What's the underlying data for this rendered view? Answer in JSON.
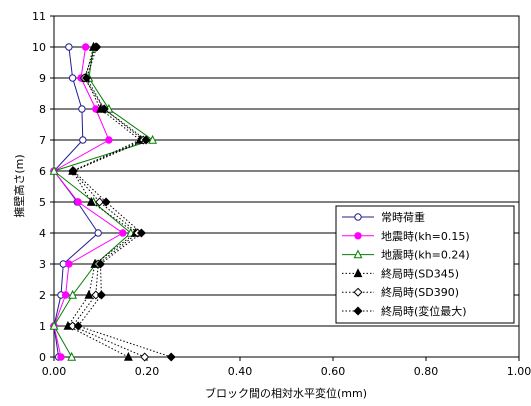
{
  "chart_data": {
    "type": "line",
    "title": "",
    "xlabel": "ブロック間の相対水平変位(mm)",
    "ylabel": "擁壁高さ(m)",
    "xlim": [
      0,
      1.0
    ],
    "ylim": [
      0,
      11
    ],
    "x_ticks": [
      "0.00",
      "0.20",
      "0.40",
      "0.60",
      "0.80",
      "1.00"
    ],
    "y_ticks": [
      "0",
      "1",
      "2",
      "3",
      "4",
      "5",
      "6",
      "7",
      "8",
      "9",
      "10",
      "11"
    ],
    "grid": "horizontal",
    "legend_position": "lower-right",
    "series": [
      {
        "name": "常時荷重",
        "color": "#1f1f8f",
        "line": "solid",
        "marker": "circle-open",
        "points": [
          [
            0.01,
            0
          ],
          [
            0.0,
            1
          ],
          [
            0.015,
            2
          ],
          [
            0.02,
            3
          ],
          [
            0.095,
            4
          ],
          [
            0.05,
            5
          ],
          [
            0.0,
            6
          ],
          [
            0.062,
            7
          ],
          [
            0.06,
            8
          ],
          [
            0.04,
            9
          ],
          [
            0.032,
            10
          ]
        ]
      },
      {
        "name": "地震時(kh=0.15)",
        "color": "#ff00ff",
        "line": "solid",
        "marker": "circle-filled",
        "points": [
          [
            0.015,
            0
          ],
          [
            0.0,
            1
          ],
          [
            0.025,
            2
          ],
          [
            0.032,
            3
          ],
          [
            0.148,
            4
          ],
          [
            0.052,
            5
          ],
          [
            0.0,
            6
          ],
          [
            0.118,
            7
          ],
          [
            0.09,
            8
          ],
          [
            0.058,
            9
          ],
          [
            0.068,
            10
          ]
        ]
      },
      {
        "name": "地震時(kh=0.24)",
        "color": "#008000",
        "line": "solid",
        "marker": "triangle-open",
        "points": [
          [
            0.038,
            0
          ],
          [
            0.0,
            1
          ],
          [
            0.04,
            2
          ],
          [
            0.09,
            3
          ],
          [
            0.165,
            4
          ],
          [
            0.085,
            5
          ],
          [
            0.0,
            6
          ],
          [
            0.212,
            7
          ],
          [
            0.118,
            8
          ],
          [
            0.075,
            9
          ],
          [
            0.085,
            10
          ]
        ]
      },
      {
        "name": "終局時(SD345)",
        "color": "#000000",
        "line": "dotted",
        "marker": "triangle-filled",
        "points": [
          [
            0.16,
            0
          ],
          [
            0.03,
            1
          ],
          [
            0.075,
            2
          ],
          [
            0.088,
            3
          ],
          [
            0.175,
            4
          ],
          [
            0.08,
            5
          ],
          [
            0.04,
            6
          ],
          [
            0.185,
            7
          ],
          [
            0.1,
            8
          ],
          [
            0.068,
            9
          ],
          [
            0.085,
            10
          ]
        ]
      },
      {
        "name": "終局時(SD390)",
        "color": "#000000",
        "line": "dotted",
        "marker": "diamond-open",
        "points": [
          [
            0.195,
            0
          ],
          [
            0.04,
            1
          ],
          [
            0.09,
            2
          ],
          [
            0.095,
            3
          ],
          [
            0.18,
            4
          ],
          [
            0.098,
            5
          ],
          [
            0.04,
            6
          ],
          [
            0.192,
            7
          ],
          [
            0.108,
            8
          ],
          [
            0.065,
            9
          ],
          [
            0.09,
            10
          ]
        ]
      },
      {
        "name": "終局時(変位最大)",
        "color": "#000000",
        "line": "dotted",
        "marker": "diamond-filled",
        "points": [
          [
            0.252,
            0
          ],
          [
            0.052,
            1
          ],
          [
            0.102,
            2
          ],
          [
            0.1,
            3
          ],
          [
            0.188,
            4
          ],
          [
            0.112,
            5
          ],
          [
            0.042,
            6
          ],
          [
            0.198,
            7
          ],
          [
            0.108,
            8
          ],
          [
            0.07,
            9
          ],
          [
            0.092,
            10
          ]
        ]
      }
    ]
  }
}
